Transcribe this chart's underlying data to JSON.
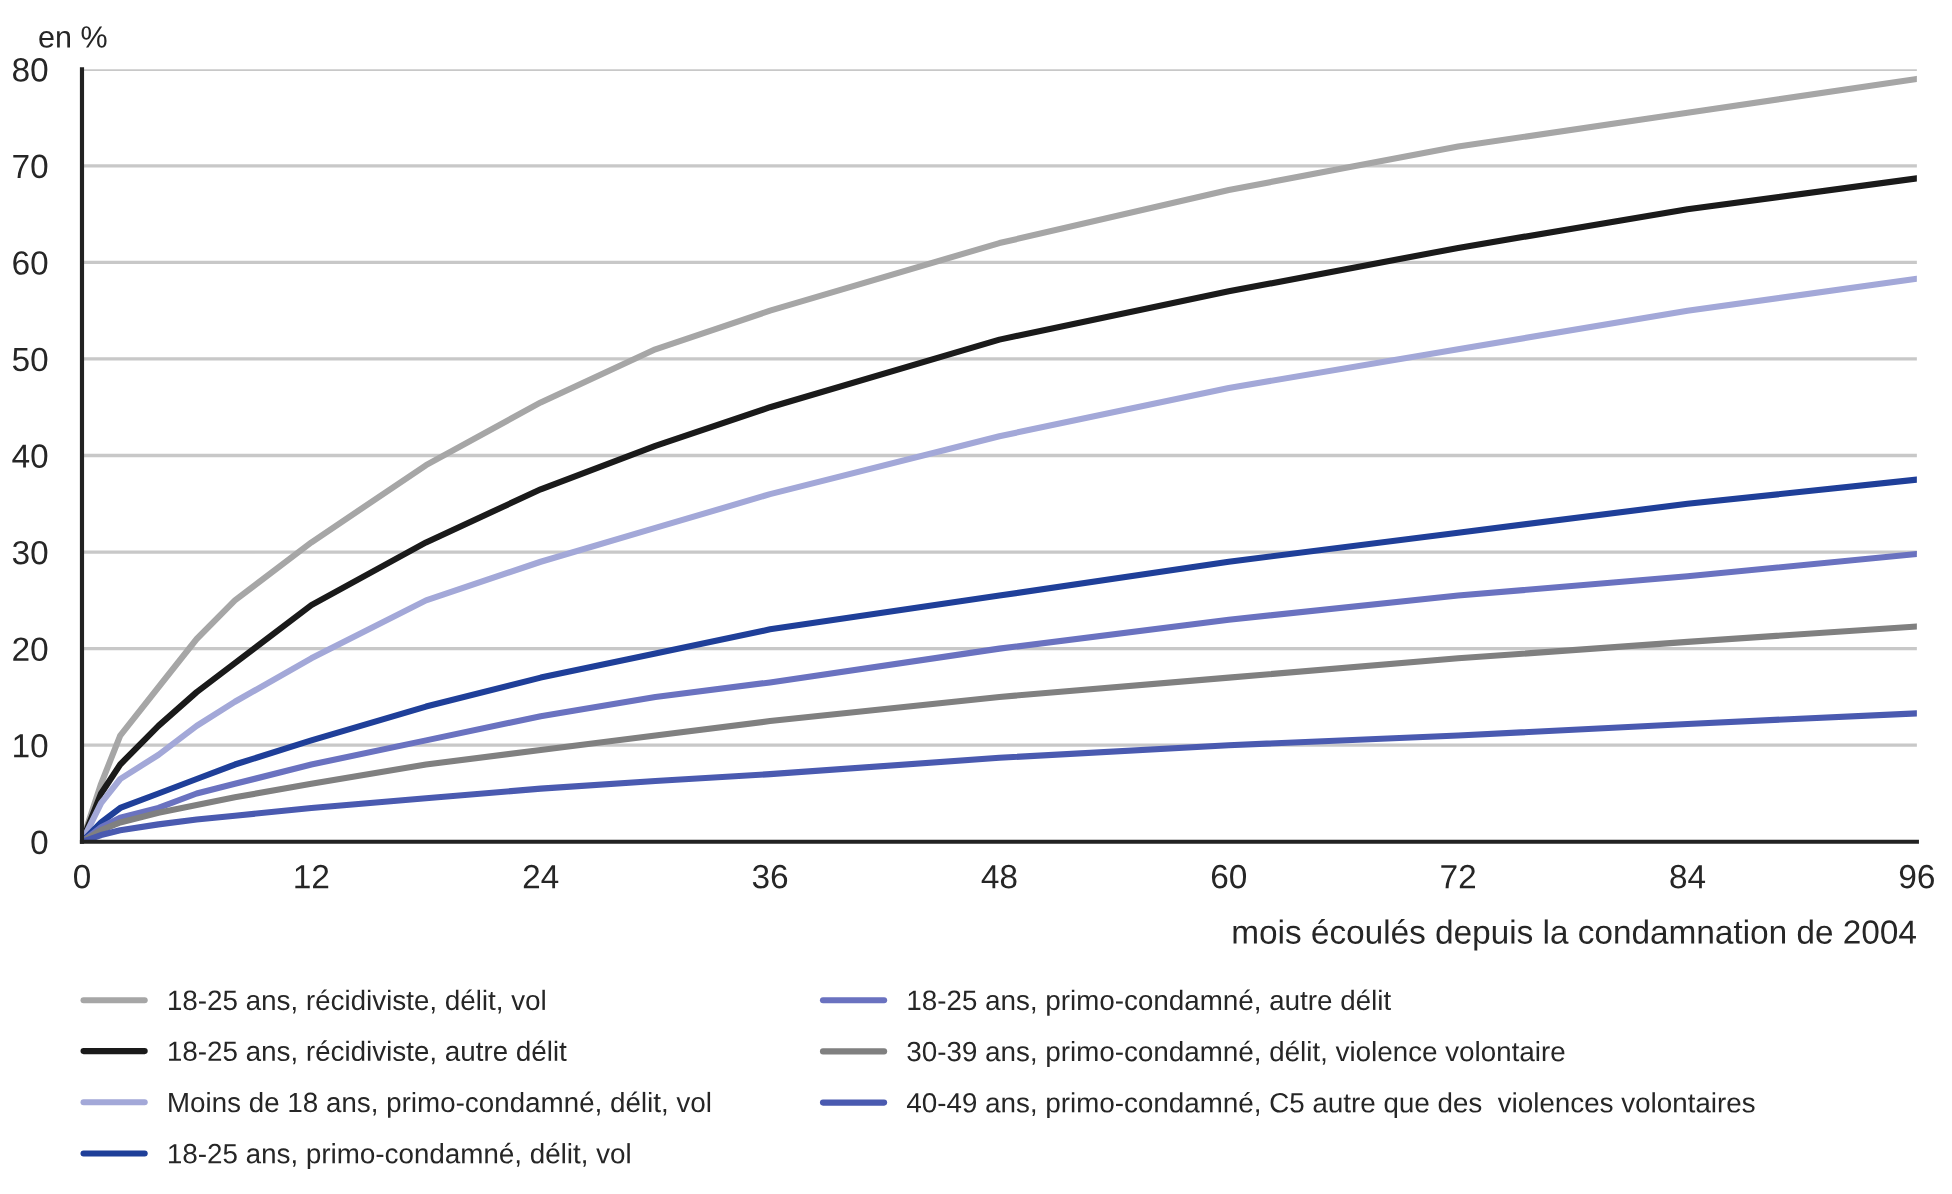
{
  "chart_data": {
    "type": "line",
    "ylabel": "en %",
    "xlabel": "mois écoulés depuis la condamnation de 2004",
    "x": [
      0,
      1,
      2,
      4,
      6,
      8,
      12,
      18,
      24,
      30,
      36,
      48,
      60,
      72,
      84,
      96
    ],
    "xlim": [
      0,
      96
    ],
    "xticks": [
      0,
      12,
      24,
      36,
      48,
      60,
      72,
      84,
      96
    ],
    "ylim": [
      0,
      80
    ],
    "yticks": [
      0,
      10,
      20,
      30,
      40,
      50,
      60,
      70,
      80
    ],
    "grid": "y",
    "legend": "bottom",
    "marker": "none",
    "line_style": "solid",
    "series": [
      {
        "name": "18-25 ans, récidiviste, délit, vol",
        "color": "#a6a6a6",
        "values": [
          0,
          6,
          11,
          16,
          21,
          25,
          31,
          39,
          45.5,
          51,
          55,
          62,
          67.5,
          72,
          75.5,
          79
        ]
      },
      {
        "name": "18-25 ans, récidiviste, autre délit",
        "color": "#1a1a1a",
        "values": [
          0,
          5,
          8,
          12,
          15.5,
          18.5,
          24.5,
          31,
          36.5,
          41,
          45,
          52,
          57,
          61.5,
          65.5,
          68.7
        ]
      },
      {
        "name": "Moins de 18 ans, primo-condamné, délit, vol",
        "color": "#a3a8d8",
        "values": [
          0,
          4,
          6.5,
          9,
          12,
          14.5,
          19,
          25,
          29,
          32.5,
          36,
          42,
          47,
          51,
          55,
          58.3
        ]
      },
      {
        "name": "18-25 ans, primo-condamné, délit, vol",
        "color": "#1f3f99",
        "values": [
          0,
          2,
          3.5,
          5,
          6.5,
          8,
          10.5,
          14,
          17,
          19.5,
          22,
          25.5,
          29,
          32,
          35,
          37.5
        ]
      },
      {
        "name": "18-25 ans, primo-condamné, autre délit",
        "color": "#6a72c0",
        "values": [
          0,
          1.5,
          2.5,
          3.5,
          5,
          6,
          8,
          10.5,
          13,
          15,
          16.5,
          20,
          23,
          25.5,
          27.5,
          29.8
        ]
      },
      {
        "name": "30-39 ans, primo-condamné, délit, violence volontaire",
        "color": "#808080",
        "values": [
          0,
          1.2,
          2,
          3,
          3.8,
          4.6,
          6,
          8,
          9.5,
          11,
          12.5,
          15,
          17,
          19,
          20.7,
          22.3
        ]
      },
      {
        "name": "40-49 ans, primo-condamné, C5 autre que des  violences volontaires",
        "color": "#4a5ab0",
        "values": [
          0,
          0.7,
          1.2,
          1.8,
          2.3,
          2.7,
          3.5,
          4.5,
          5.5,
          6.3,
          7,
          8.7,
          10,
          11,
          12.2,
          13.3
        ]
      }
    ]
  }
}
